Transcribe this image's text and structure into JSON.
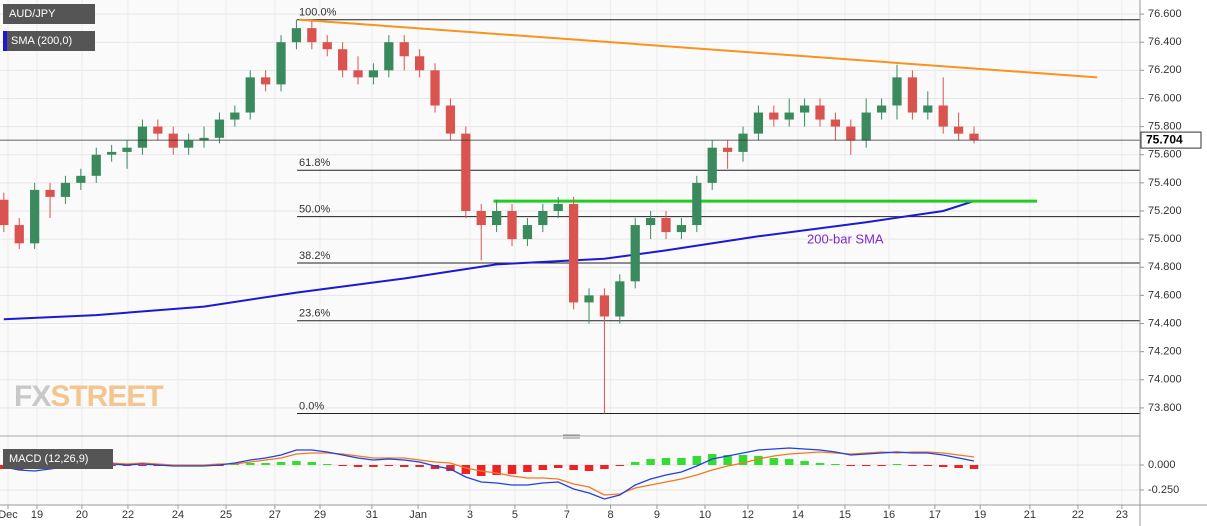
{
  "chart_data": [
    {
      "type": "candlestick",
      "title": "AUD/JPY",
      "up_color": "#3b8a5e",
      "down_color": "#d9534f",
      "open": [
        75.28,
        75.1,
        74.97,
        75.35,
        75.3,
        75.4,
        75.45,
        75.6,
        75.62,
        75.65,
        75.8,
        75.75,
        75.65,
        75.7,
        75.72,
        75.85,
        75.9,
        76.15,
        76.1,
        76.4,
        76.5,
        76.4,
        76.35,
        76.2,
        76.15,
        76.2,
        76.4,
        76.3,
        76.2,
        75.95,
        75.75,
        75.2,
        75.1,
        75.2,
        75.0,
        75.1,
        75.2,
        75.25,
        74.55,
        74.6,
        74.45,
        74.7,
        75.1,
        75.15,
        75.05,
        75.1,
        75.4,
        75.65,
        75.62,
        75.75,
        75.9,
        75.85,
        75.9,
        75.95,
        75.85,
        75.8,
        75.7,
        75.9,
        75.95,
        76.15,
        75.9,
        75.95,
        75.8,
        75.75
      ],
      "high": [
        75.33,
        75.15,
        75.4,
        75.4,
        75.45,
        75.5,
        75.65,
        75.67,
        75.7,
        75.85,
        75.85,
        75.8,
        75.75,
        75.8,
        75.9,
        75.95,
        76.2,
        76.2,
        76.45,
        76.56,
        76.55,
        76.45,
        76.4,
        76.3,
        76.25,
        76.45,
        76.45,
        76.35,
        76.25,
        76.0,
        75.8,
        75.25,
        75.28,
        75.25,
        75.15,
        75.25,
        75.3,
        75.3,
        74.65,
        74.65,
        74.75,
        75.15,
        75.2,
        75.2,
        75.15,
        75.45,
        75.7,
        75.7,
        75.8,
        75.95,
        75.95,
        76.0,
        76.0,
        76.0,
        75.9,
        75.85,
        76.0,
        76.0,
        76.24,
        76.2,
        76.05,
        76.15,
        75.9,
        75.8
      ],
      "low": [
        75.05,
        74.93,
        74.93,
        75.15,
        75.25,
        75.35,
        75.4,
        75.55,
        75.5,
        75.6,
        75.7,
        75.6,
        75.6,
        75.65,
        75.68,
        75.8,
        75.85,
        76.05,
        76.05,
        76.35,
        76.35,
        76.3,
        76.15,
        76.1,
        76.1,
        76.15,
        76.2,
        76.15,
        75.9,
        75.7,
        75.15,
        74.85,
        75.05,
        74.95,
        74.95,
        75.05,
        75.15,
        74.5,
        74.4,
        73.76,
        74.4,
        74.65,
        75.0,
        75.0,
        75.0,
        75.05,
        75.35,
        75.5,
        75.55,
        75.7,
        75.8,
        75.8,
        75.8,
        75.8,
        75.7,
        75.6,
        75.65,
        75.85,
        75.85,
        75.85,
        75.85,
        75.75,
        75.7,
        75.68
      ],
      "close": [
        75.1,
        74.97,
        75.35,
        75.3,
        75.4,
        75.45,
        75.6,
        75.62,
        75.65,
        75.8,
        75.75,
        75.65,
        75.7,
        75.72,
        75.85,
        75.9,
        76.15,
        76.1,
        76.4,
        76.5,
        76.4,
        76.35,
        76.2,
        76.15,
        76.2,
        76.4,
        76.3,
        76.2,
        75.95,
        75.75,
        75.2,
        75.1,
        75.2,
        75.0,
        75.1,
        75.2,
        75.25,
        74.55,
        74.6,
        74.45,
        74.7,
        75.1,
        75.15,
        75.05,
        75.1,
        75.4,
        75.65,
        75.62,
        75.75,
        75.9,
        75.85,
        75.9,
        75.95,
        75.85,
        75.8,
        75.7,
        75.9,
        75.95,
        76.15,
        75.9,
        75.95,
        75.8,
        75.75,
        75.704
      ],
      "last_price": 75.704,
      "sma": {
        "name": "SMA (200,0)",
        "label": "200-bar SMA",
        "color": "#1a1ad6",
        "x": [
          0,
          6,
          13,
          19,
          26,
          32,
          39,
          43,
          49,
          56,
          61,
          63
        ],
        "values": [
          74.43,
          74.46,
          74.52,
          74.62,
          74.72,
          74.82,
          74.86,
          74.92,
          75.02,
          75.12,
          75.2,
          75.27
        ]
      },
      "trendline": {
        "color": "#f7931e",
        "x": [
          19.2,
          71.0
        ],
        "values": [
          76.56,
          76.15
        ]
      },
      "support": {
        "color": "#22cc22",
        "x": [
          31.8,
          67.1
        ],
        "values": [
          75.27,
          75.27
        ]
      },
      "fibonacci": {
        "x_start": 19.04,
        "levels": [
          {
            "label": "100.0%",
            "value": 76.56
          },
          {
            "label": "61.8%",
            "value": 75.49
          },
          {
            "label": "50.0%",
            "value": 75.16
          },
          {
            "label": "38.2%",
            "value": 74.83
          },
          {
            "label": "23.6%",
            "value": 74.42
          },
          {
            "label": "0.0%",
            "value": 73.76
          }
        ]
      },
      "watermark": [
        "FX",
        "STREET"
      ],
      "xlim": [
        -0.25,
        73.78
      ],
      "xticks": [
        {
          "value": 0.27,
          "label": "Dec"
        },
        {
          "value": 2.15,
          "label": "19"
        },
        {
          "value": 5.07,
          "label": "20"
        },
        {
          "value": 8.06,
          "label": "22"
        },
        {
          "value": 11.31,
          "label": "24"
        },
        {
          "value": 14.43,
          "label": "25"
        },
        {
          "value": 17.6,
          "label": "27"
        },
        {
          "value": 20.53,
          "label": "29"
        },
        {
          "value": 23.9,
          "label": "31"
        },
        {
          "value": 26.9,
          "label": "Jan"
        },
        {
          "value": 30.27,
          "label": "3"
        },
        {
          "value": 33.19,
          "label": "5"
        },
        {
          "value": 36.57,
          "label": "7"
        },
        {
          "value": 39.4,
          "label": "8"
        },
        {
          "value": 42.41,
          "label": "9"
        },
        {
          "value": 45.53,
          "label": "10"
        },
        {
          "value": 48.32,
          "label": "12"
        },
        {
          "value": 51.57,
          "label": "14"
        },
        {
          "value": 54.62,
          "label": "15"
        },
        {
          "value": 57.48,
          "label": "16"
        },
        {
          "value": 60.46,
          "label": "17"
        },
        {
          "value": 63.4,
          "label": "19"
        },
        {
          "value": 66.63,
          "label": "21"
        },
        {
          "value": 69.75,
          "label": "22"
        },
        {
          "value": 72.6,
          "label": "23"
        }
      ],
      "ylim": [
        73.643,
        76.7
      ],
      "yticks": [
        {
          "value": 73.8,
          "label": "73.800"
        },
        {
          "value": 74.0,
          "label": "74.000"
        },
        {
          "value": 74.2,
          "label": "74.200"
        },
        {
          "value": 74.4,
          "label": "74.400"
        },
        {
          "value": 74.6,
          "label": "74.600"
        },
        {
          "value": 74.8,
          "label": "74.800"
        },
        {
          "value": 75.0,
          "label": "75.000"
        },
        {
          "value": 75.2,
          "label": "75.200"
        },
        {
          "value": 75.4,
          "label": "75.400"
        },
        {
          "value": 75.6,
          "label": "75.600"
        },
        {
          "value": 75.8,
          "label": "75.800"
        },
        {
          "value": 76.0,
          "label": "76.000"
        },
        {
          "value": 76.2,
          "label": "76.200"
        },
        {
          "value": 76.4,
          "label": "76.400"
        },
        {
          "value": 76.6,
          "label": "76.600"
        }
      ],
      "grid": true
    },
    {
      "type": "macd",
      "title": "MACD (12,26,9)",
      "pos_color": "#33dd33",
      "neg_color": "#ee2222",
      "histogram": [
        -0.04,
        -0.05,
        -0.03,
        -0.01,
        -0.01,
        -0.01,
        -0.01,
        -0.01,
        -0.01,
        -0.01,
        -0.01,
        -0.01,
        -0.01,
        -0.01,
        -0.01,
        0.01,
        0.02,
        0.02,
        0.03,
        0.04,
        0.03,
        0.01,
        -0.01,
        -0.02,
        -0.02,
        -0.01,
        -0.02,
        -0.02,
        -0.04,
        -0.06,
        -0.09,
        -0.11,
        -0.1,
        -0.09,
        -0.07,
        -0.05,
        -0.03,
        -0.05,
        -0.06,
        -0.04,
        -0.01,
        0.03,
        0.06,
        0.07,
        0.07,
        0.09,
        0.11,
        0.1,
        0.1,
        0.09,
        0.07,
        0.06,
        0.04,
        0.02,
        0.01,
        -0.01,
        -0.01,
        -0.01,
        0.01,
        -0.01,
        -0.01,
        -0.02,
        -0.03,
        -0.04
      ],
      "macd": {
        "color": "#2040e0",
        "values": [
          -0.02,
          -0.05,
          -0.06,
          -0.04,
          -0.02,
          -0.01,
          0.01,
          0.01,
          0.0,
          0.01,
          0.0,
          -0.01,
          -0.01,
          -0.01,
          0.0,
          0.02,
          0.05,
          0.07,
          0.1,
          0.15,
          0.15,
          0.13,
          0.1,
          0.07,
          0.05,
          0.06,
          0.05,
          0.03,
          -0.01,
          -0.04,
          -0.12,
          -0.17,
          -0.18,
          -0.2,
          -0.2,
          -0.18,
          -0.17,
          -0.24,
          -0.28,
          -0.34,
          -0.3,
          -0.2,
          -0.14,
          -0.1,
          -0.07,
          -0.01,
          0.06,
          0.09,
          0.12,
          0.15,
          0.16,
          0.17,
          0.16,
          0.15,
          0.13,
          0.1,
          0.11,
          0.12,
          0.13,
          0.12,
          0.12,
          0.1,
          0.07,
          0.04
        ]
      },
      "signal": {
        "color": "#f07a20",
        "values": [
          0.02,
          0.0,
          -0.03,
          -0.03,
          -0.01,
          0.0,
          0.02,
          0.02,
          0.01,
          0.02,
          0.01,
          0.0,
          0.0,
          0.0,
          0.01,
          0.01,
          0.03,
          0.05,
          0.07,
          0.11,
          0.12,
          0.12,
          0.11,
          0.09,
          0.07,
          0.07,
          0.07,
          0.05,
          0.03,
          0.02,
          -0.03,
          -0.06,
          -0.08,
          -0.11,
          -0.13,
          -0.13,
          -0.14,
          -0.19,
          -0.22,
          -0.3,
          -0.29,
          -0.23,
          -0.2,
          -0.17,
          -0.14,
          -0.1,
          -0.05,
          -0.01,
          0.02,
          0.06,
          0.09,
          0.11,
          0.12,
          0.13,
          0.12,
          0.11,
          0.12,
          0.13,
          0.12,
          0.13,
          0.13,
          0.12,
          0.1,
          0.08
        ]
      },
      "ylim": [
        -0.4,
        0.23
      ],
      "yticks": [
        {
          "value": 0,
          "label": "0.000"
        },
        {
          "value": -0.25,
          "label": "-0.250"
        }
      ]
    }
  ]
}
